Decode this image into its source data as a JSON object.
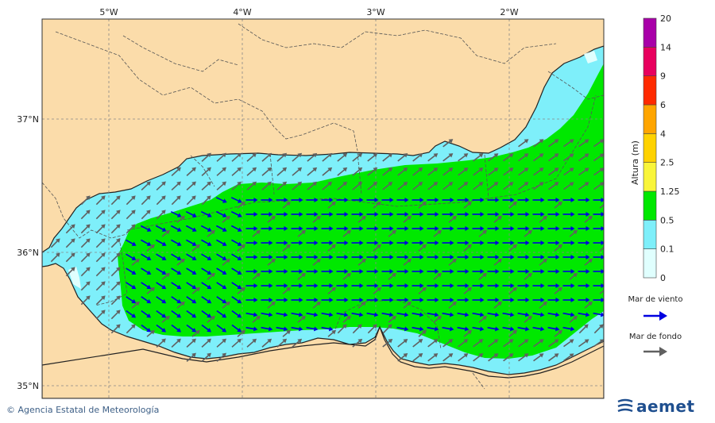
{
  "map": {
    "longitude_labels": [
      "5°W",
      "4°W",
      "3°W",
      "2°W"
    ],
    "latitude_labels": [
      "37°N",
      "36°N",
      "35°N"
    ]
  },
  "legend": {
    "title": "Altura (m)",
    "levels": [
      "0",
      "0.1",
      "0.5",
      "1.25",
      "2.5",
      "4",
      "6",
      "9",
      "14",
      "20"
    ],
    "colors": [
      "#e0fffe",
      "#7eeffa",
      "#00e800",
      "#f9f53a",
      "#ffd200",
      "#ffa500",
      "#ff2a00",
      "#e8005e",
      "#a800a8"
    ],
    "wind_sea_label": "Mar de viento",
    "wind_sea_color": "#0000e0",
    "swell_label": "Mar de fondo",
    "swell_color": "#606060"
  },
  "credit": {
    "symbol": "©",
    "text": "Agencia Estatal de Meteorología"
  },
  "logo": {
    "text": "aemet"
  },
  "colors": {
    "land": "#fbdcaa",
    "low_wave": "#7eeffa",
    "mid_wave": "#00e800"
  }
}
